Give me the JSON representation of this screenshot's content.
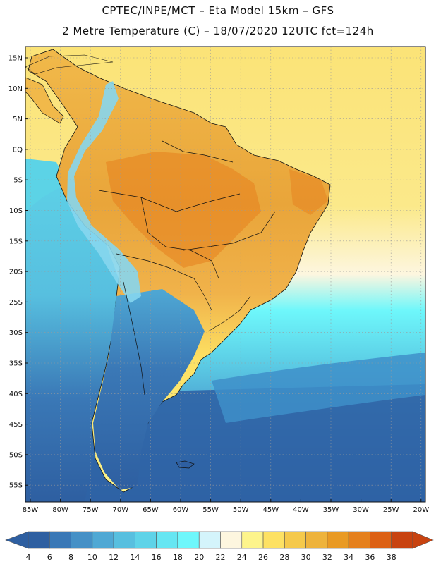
{
  "header": {
    "line1": "CPTEC/INPE/MCT –  Eta Model 15km – GFS",
    "line2": "2 Metre Temperature (C) – 18/07/2020 12UTC fct=124h"
  },
  "map": {
    "latitude_labels": [
      "15N",
      "10N",
      "5N",
      "EQ",
      "5S",
      "10S",
      "15S",
      "20S",
      "25S",
      "30S",
      "35S",
      "40S",
      "45S",
      "50S",
      "55S"
    ],
    "longitude_labels": [
      "85W",
      "80W",
      "75W",
      "70W",
      "65W",
      "60W",
      "55W",
      "50W",
      "45W",
      "40W",
      "35W",
      "30W",
      "25W",
      "20W"
    ],
    "colors": {
      "ocean_cold": "#2f63a5",
      "ocean_mid": "#3e8fc9",
      "ocean_cyan": "#5cd3e6",
      "ocean_warm": "#fbe98a",
      "land_hot": "#e9a53a",
      "land_warm": "#f1b94a",
      "andes": "#86d6ee"
    }
  },
  "colorbar": {
    "ticks": [
      "4",
      "6",
      "8",
      "10",
      "12",
      "14",
      "16",
      "18",
      "20",
      "22",
      "24",
      "26",
      "28",
      "30",
      "32",
      "34",
      "36",
      "38"
    ],
    "colors": [
      "#2e5fa1",
      "#3a78b6",
      "#4590c6",
      "#4fa8d4",
      "#57bfdf",
      "#5ed3e8",
      "#66e6f2",
      "#6ef7fb",
      "#d4f4fb",
      "#fdf6df",
      "#fdf48c",
      "#fde163",
      "#f5c94b",
      "#eeb33c",
      "#e99a24",
      "#e5801d",
      "#dc6014",
      "#c84310"
    ]
  }
}
